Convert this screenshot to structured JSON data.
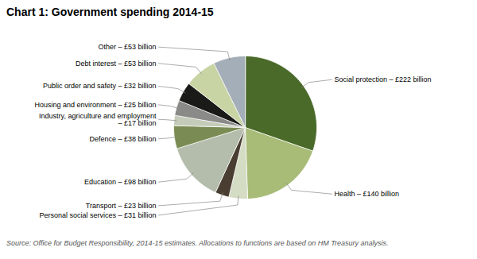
{
  "chart_data": {
    "type": "pie",
    "title": "Chart 1: Government spending 2014-15",
    "categories": [
      "Social protection",
      "Health",
      "Personal social services",
      "Transport",
      "Education",
      "Defence",
      "Industry, agriculture and employment",
      "Housing and environment",
      "Public order and safety",
      "Debt interest",
      "Other"
    ],
    "values": [
      222,
      140,
      31,
      23,
      98,
      38,
      17,
      25,
      32,
      53,
      53
    ],
    "colors": [
      "#4a6a2a",
      "#a8bc78",
      "#d4dcc4",
      "#4a3e32",
      "#b4bcac",
      "#7a8c54",
      "#c4cbb8",
      "#8a8a88",
      "#1a1a18",
      "#c8d4a4",
      "#a4aeb8"
    ],
    "data_labels": true,
    "value_labels": [
      "Social protection – £222 billion",
      "Health – £140 billion",
      "Personal social services – £31 billion",
      "Transport – £23 billion",
      "Education – £98 billion",
      "Defence – £38 billion",
      "Industry, agriculture and employment\n– £17 billion",
      "Housing and environment – £25 billion",
      "Public order and safety – £32 billion",
      "Debt interest – £53 billion",
      "Other – £53 billion"
    ],
    "annotations": [
      "Source: Office for Budget Responsibility, 2014-15 estimates. Allocations to functions are based on HM Treasury analysis."
    ]
  }
}
